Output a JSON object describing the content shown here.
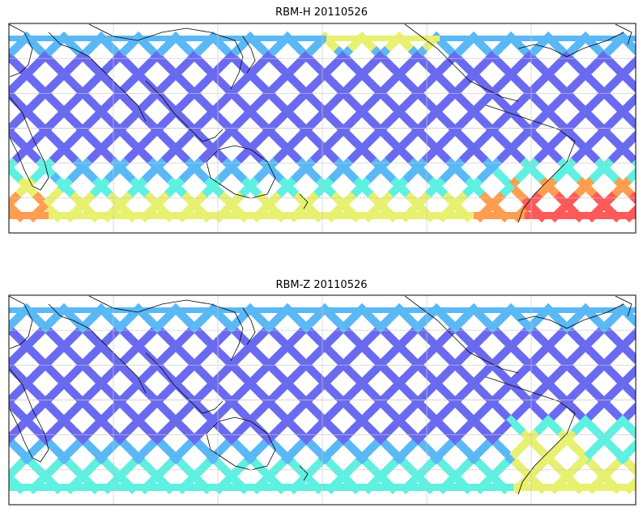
{
  "panels": [
    {
      "title": "RBM-H 20110526",
      "variant": "H"
    },
    {
      "title": "RBM-Z 20110526",
      "variant": "Z"
    }
  ],
  "colors": {
    "track_low": "#6a6af0",
    "track_mid": "#5ab8f5",
    "track_cyan": "#5ef0e0",
    "track_yellow": "#e8f070",
    "track_orange": "#ff9d50",
    "track_red": "#ff5a5a",
    "gridline": "#c8c8c8",
    "coastline": "#000000",
    "frame": "#000000"
  },
  "map": {
    "projection": "cylindrical",
    "gridlines": true,
    "coastlines": true,
    "features": [
      "satellite swath tracks",
      "coastlines",
      "lat/lon grid"
    ]
  }
}
